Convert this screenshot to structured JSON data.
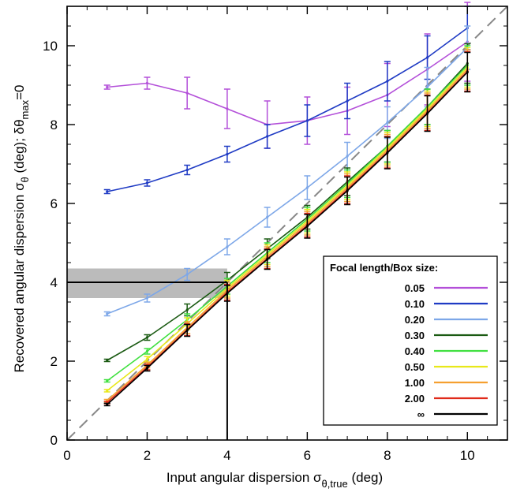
{
  "chart_data": {
    "type": "line",
    "xlabel_main": "Input angular dispersion σ",
    "xlabel_sub": "θ,true",
    "xlabel_tail": " (deg)",
    "ylabel_main": "Recovered angular dispersion σ",
    "ylabel_sub": "θ",
    "ylabel_mid": " (deg); δθ",
    "ylabel_sub2": "max",
    "ylabel_tail": "=0",
    "xlim": [
      0,
      11
    ],
    "ylim": [
      0,
      11
    ],
    "xticks": [
      0,
      2,
      4,
      6,
      8,
      10
    ],
    "yticks": [
      0,
      2,
      4,
      6,
      8,
      10
    ],
    "x": [
      1,
      2,
      3,
      4,
      5,
      6,
      7,
      8,
      9,
      10
    ],
    "legend_title": "Focal length/Box size:",
    "legend_position": "lower-right",
    "reference_line": {
      "type": "identity",
      "style": "dashed",
      "color": "#888888"
    },
    "highlight_band": {
      "ymin": 3.6,
      "ymax": 4.35,
      "color": "#bbbbbb"
    },
    "marker_lines": {
      "x": 4,
      "y": 4,
      "color": "#000000"
    },
    "series": [
      {
        "name": "0.05",
        "color": "#b34fd9",
        "values": [
          8.95,
          9.05,
          8.8,
          8.4,
          8.0,
          8.1,
          8.35,
          8.75,
          9.4,
          10.1
        ],
        "errors": [
          0.05,
          0.15,
          0.4,
          0.5,
          0.6,
          0.6,
          0.6,
          0.8,
          0.9,
          1.0
        ]
      },
      {
        "name": "0.10",
        "color": "#1f3bc4",
        "values": [
          6.3,
          6.52,
          6.85,
          7.25,
          7.7,
          8.1,
          8.6,
          9.1,
          9.7,
          10.45
        ],
        "errors": [
          0.05,
          0.08,
          0.12,
          0.2,
          0.3,
          0.4,
          0.45,
          0.5,
          0.55,
          0.55
        ]
      },
      {
        "name": "0.20",
        "color": "#7da7e8",
        "values": [
          3.2,
          3.6,
          4.2,
          4.9,
          5.65,
          6.4,
          7.2,
          8.05,
          8.95,
          9.95
        ],
        "errors": [
          0.05,
          0.1,
          0.15,
          0.2,
          0.25,
          0.3,
          0.35,
          0.4,
          0.5,
          0.55
        ]
      },
      {
        "name": "0.30",
        "color": "#1a5a12",
        "values": [
          2.02,
          2.6,
          3.3,
          4.05,
          4.85,
          5.65,
          6.55,
          7.45,
          8.45,
          9.55
        ],
        "errors": [
          0.03,
          0.07,
          0.15,
          0.2,
          0.25,
          0.3,
          0.35,
          0.4,
          0.45,
          0.5
        ]
      },
      {
        "name": "0.40",
        "color": "#40e040",
        "values": [
          1.5,
          2.25,
          3.05,
          3.9,
          4.75,
          5.6,
          6.5,
          7.45,
          8.45,
          9.5
        ],
        "errors": [
          0.03,
          0.07,
          0.15,
          0.2,
          0.25,
          0.3,
          0.35,
          0.4,
          0.45,
          0.5
        ]
      },
      {
        "name": "0.50",
        "color": "#e8e81a",
        "values": [
          1.25,
          2.05,
          2.95,
          3.85,
          4.7,
          5.55,
          6.45,
          7.4,
          8.4,
          9.45
        ],
        "errors": [
          0.03,
          0.07,
          0.15,
          0.2,
          0.25,
          0.3,
          0.35,
          0.4,
          0.45,
          0.5
        ]
      },
      {
        "name": "1.00",
        "color": "#f5a030",
        "values": [
          1.0,
          1.9,
          2.85,
          3.8,
          4.65,
          5.5,
          6.4,
          7.35,
          8.35,
          9.4
        ],
        "errors": [
          0.03,
          0.07,
          0.15,
          0.2,
          0.25,
          0.3,
          0.35,
          0.4,
          0.45,
          0.5
        ]
      },
      {
        "name": "2.00",
        "color": "#e02a1a",
        "values": [
          0.95,
          1.85,
          2.8,
          3.75,
          4.6,
          5.45,
          6.35,
          7.3,
          8.3,
          9.35
        ],
        "errors": [
          0.03,
          0.07,
          0.15,
          0.2,
          0.25,
          0.3,
          0.35,
          0.4,
          0.45,
          0.5
        ]
      },
      {
        "name": "∞",
        "color": "#000000",
        "values": [
          0.9,
          1.82,
          2.78,
          3.72,
          4.58,
          5.42,
          6.32,
          7.28,
          8.28,
          9.33
        ],
        "errors": [
          0.03,
          0.07,
          0.15,
          0.2,
          0.25,
          0.3,
          0.35,
          0.4,
          0.45,
          0.5
        ]
      }
    ]
  }
}
